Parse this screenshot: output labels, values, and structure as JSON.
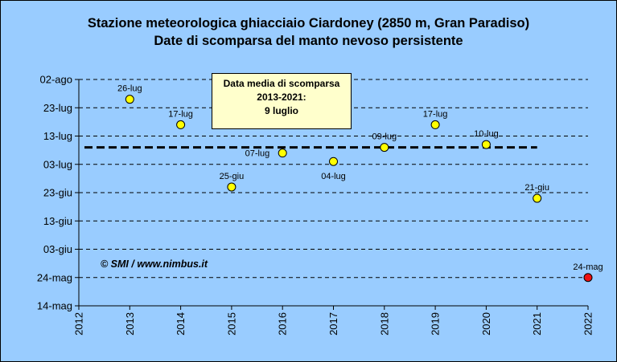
{
  "title": {
    "line1": "Stazione meteorologica ghiacciaio Ciardoney (2850 m, Gran Paradiso)",
    "line2": "Date di scomparsa del manto nevoso persistente"
  },
  "annotation": {
    "line1": "Data media di scomparsa",
    "line2": "2013-2021:",
    "line3": "9 luglio"
  },
  "copyright": "© SMI / www.nimbus.it",
  "chart_data": {
    "type": "scatter",
    "title": "Stazione meteorologica ghiacciaio Ciardoney (2850 m, Gran Paradiso) - Date di scomparsa del manto nevoso persistente",
    "xlabel": "",
    "ylabel": "",
    "xlim": [
      2012,
      2022
    ],
    "x_ticks": [
      "2012",
      "2013",
      "2014",
      "2015",
      "2016",
      "2017",
      "2018",
      "2019",
      "2020",
      "2021",
      "2022"
    ],
    "ylim": [
      "14-mag",
      "02-ago"
    ],
    "y_ticks": [
      "14-mag",
      "24-mag",
      "03-giu",
      "13-giu",
      "23-giu",
      "03-lug",
      "13-lug",
      "23-lug",
      "02-ago"
    ],
    "grid": "horizontal dashed",
    "mean_line": {
      "label": "9 luglio",
      "value": "09-lug",
      "x_range": [
        2012,
        2021
      ]
    },
    "points": [
      {
        "x": 2013,
        "label": "26-lug",
        "color": "#ffff00"
      },
      {
        "x": 2014,
        "label": "17-lug",
        "color": "#ffff00"
      },
      {
        "x": 2015,
        "label": "25-giu",
        "color": "#ffff00"
      },
      {
        "x": 2016,
        "label": "07-lug",
        "color": "#ffff00"
      },
      {
        "x": 2017,
        "label": "04-lug",
        "color": "#ffff00"
      },
      {
        "x": 2018,
        "label": "09-lug",
        "color": "#ffff00"
      },
      {
        "x": 2019,
        "label": "17-lug",
        "color": "#ffff00"
      },
      {
        "x": 2020,
        "label": "10-lug",
        "color": "#ffff00"
      },
      {
        "x": 2021,
        "label": "21-giu",
        "color": "#ffff00"
      },
      {
        "x": 2022,
        "label": "24-mag",
        "color": "#ee1111"
      }
    ]
  }
}
